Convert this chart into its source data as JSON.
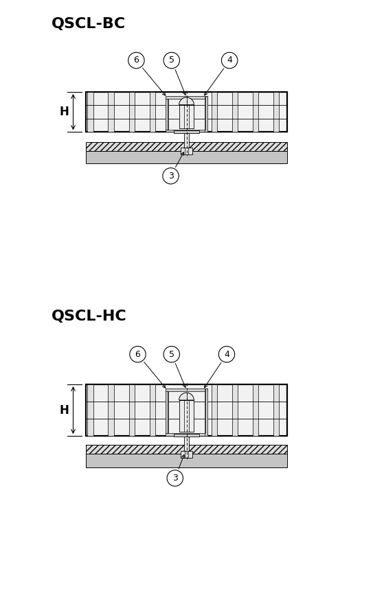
{
  "title_bc": "QSCL-BC",
  "title_hc": "QSCL-HC",
  "bg_color": "#ffffff",
  "line_color": "#000000",
  "label_H": "H"
}
